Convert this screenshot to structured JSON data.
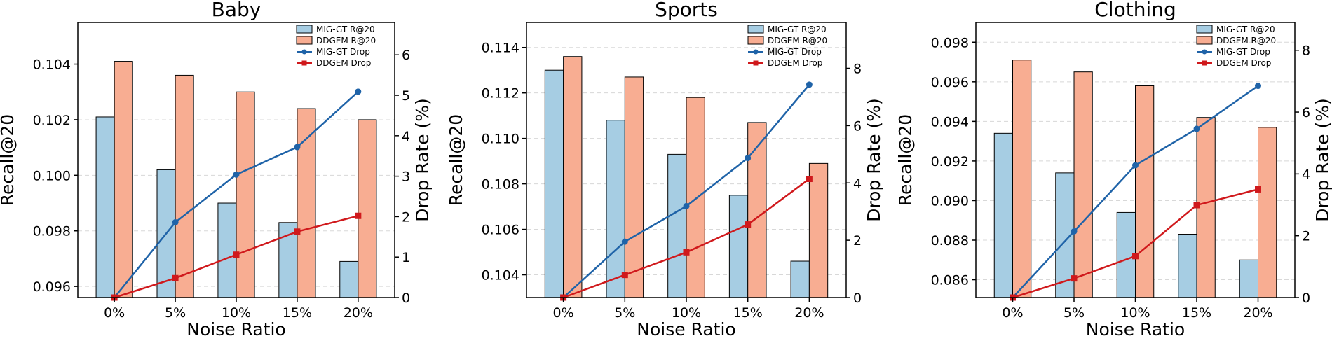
{
  "chart_data": [
    {
      "type": "bar",
      "title": "Baby",
      "xlabel": "Noise Ratio",
      "ylabel": "Recall@20",
      "y2label": "Drop Rate (%)",
      "categories": [
        "0%",
        "5%",
        "10%",
        "15%",
        "20%"
      ],
      "ylim": [
        0.0956,
        0.1055
      ],
      "yticks": [
        "0.096",
        "0.098",
        "0.100",
        "0.102",
        "0.104"
      ],
      "y2lim": [
        0,
        6.8
      ],
      "y2ticks": [
        "0",
        "1",
        "2",
        "3",
        "4",
        "5",
        "6"
      ],
      "bar_series": [
        {
          "name": "MIG-GT R@20",
          "color": "#a6cde3",
          "values": [
            0.1021,
            0.1002,
            0.099,
            0.0983,
            0.0969
          ]
        },
        {
          "name": "DDGEM R@20",
          "color": "#f8ad92",
          "values": [
            0.1041,
            0.1036,
            0.103,
            0.1024,
            0.102
          ]
        }
      ],
      "line_series": [
        {
          "name": "MIG-GT Drop",
          "color": "#1f63a8",
          "marker": "circle",
          "values": [
            0,
            1.86,
            3.04,
            3.72,
            5.09
          ]
        },
        {
          "name": "DDGEM Drop",
          "color": "#d0191c",
          "marker": "square",
          "values": [
            0,
            0.48,
            1.06,
            1.63,
            2.02
          ]
        }
      ],
      "grid": true,
      "legend": "top-right"
    },
    {
      "type": "bar",
      "title": "Sports",
      "xlabel": "Noise Ratio",
      "ylabel": "Recall@20",
      "y2label": "Drop Rate (%)",
      "categories": [
        "0%",
        "5%",
        "10%",
        "15%",
        "20%"
      ],
      "ylim": [
        0.103,
        0.1151
      ],
      "yticks": [
        "0.104",
        "0.106",
        "0.108",
        "0.110",
        "0.112",
        "0.114"
      ],
      "y2lim": [
        0,
        9.6
      ],
      "y2ticks": [
        "0",
        "2",
        "4",
        "6",
        "8"
      ],
      "bar_series": [
        {
          "name": "MIG-GT R@20",
          "color": "#a6cde3",
          "values": [
            0.113,
            0.1108,
            0.1093,
            0.1075,
            0.1046
          ]
        },
        {
          "name": "DDGEM R@20",
          "color": "#f8ad92",
          "values": [
            0.1136,
            0.1127,
            0.1118,
            0.1107,
            0.1089
          ]
        }
      ],
      "line_series": [
        {
          "name": "MIG-GT Drop",
          "color": "#1f63a8",
          "marker": "circle",
          "values": [
            0,
            1.95,
            3.19,
            4.87,
            7.43
          ]
        },
        {
          "name": "DDGEM Drop",
          "color": "#d0191c",
          "marker": "square",
          "values": [
            0,
            0.79,
            1.58,
            2.55,
            4.14
          ]
        }
      ],
      "grid": true,
      "legend": "top-right"
    },
    {
      "type": "bar",
      "title": "Clothing",
      "xlabel": "Noise Ratio",
      "ylabel": "Recall@20",
      "y2label": "Drop Rate (%)",
      "categories": [
        "0%",
        "5%",
        "10%",
        "15%",
        "20%"
      ],
      "ylim": [
        0.0851,
        0.099
      ],
      "yticks": [
        "0.086",
        "0.088",
        "0.090",
        "0.092",
        "0.094",
        "0.096",
        "0.098"
      ],
      "y2lim": [
        0,
        8.9
      ],
      "y2ticks": [
        "0",
        "2",
        "4",
        "6",
        "8"
      ],
      "bar_series": [
        {
          "name": "MIG-GT R@20",
          "color": "#a6cde3",
          "values": [
            0.0934,
            0.0914,
            0.0894,
            0.0883,
            0.087
          ]
        },
        {
          "name": "DDGEM R@20",
          "color": "#f8ad92",
          "values": [
            0.0971,
            0.0965,
            0.0958,
            0.0942,
            0.0937
          ]
        }
      ],
      "line_series": [
        {
          "name": "MIG-GT Drop",
          "color": "#1f63a8",
          "marker": "circle",
          "values": [
            0,
            2.14,
            4.28,
            5.46,
            6.85
          ]
        },
        {
          "name": "DDGEM Drop",
          "color": "#d0191c",
          "marker": "square",
          "values": [
            0,
            0.62,
            1.34,
            2.99,
            3.5
          ]
        }
      ],
      "grid": true,
      "legend": "top-right"
    }
  ]
}
